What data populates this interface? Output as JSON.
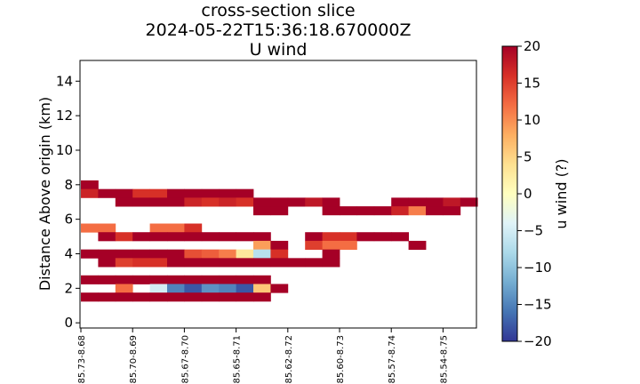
{
  "chart_data": {
    "type": "heatmap",
    "title_lines": [
      "cross-section slice",
      "2024-05-22T15:36:18.670000Z",
      "U wind"
    ],
    "ylabel": "Distance Above origin (km)",
    "xlabel": "",
    "ylim": [
      -0.3,
      15.2
    ],
    "yticks": [
      0,
      2,
      4,
      6,
      8,
      10,
      12,
      14
    ],
    "ytick_labels": [
      "0",
      "2",
      "4",
      "6",
      "8",
      "10",
      "12",
      "14"
    ],
    "xtick_labels": [
      "-85.73-8.68",
      "-85.70-8.69",
      "-85.67-8.70",
      "-85.65-8.71",
      "-85.62-8.72",
      "-85.60-8.73",
      "-85.57-8.74",
      "-85.54-8.75"
    ],
    "xtick_positions": [
      0,
      3,
      6,
      9,
      12,
      15,
      18,
      21
    ],
    "n_columns": 23,
    "level_centers_km": [
      1.5,
      2.0,
      2.5,
      3.5,
      4.0,
      4.5,
      5.0,
      5.5,
      6.5,
      7.0,
      7.5,
      8.0
    ],
    "level_thickness_km": 0.5,
    "rows": [
      {
        "z": 8.0,
        "values": [
          20,
          null,
          null,
          null,
          null,
          null,
          null,
          null,
          null,
          null,
          null,
          null,
          null,
          null,
          null,
          null,
          null,
          null,
          null,
          null,
          null,
          null,
          null
        ]
      },
      {
        "z": 7.5,
        "values": [
          17,
          20,
          20,
          16,
          16,
          20,
          20,
          20,
          20,
          20,
          null,
          null,
          null,
          null,
          null,
          null,
          null,
          null,
          null,
          null,
          null,
          null,
          null
        ]
      },
      {
        "z": 7.0,
        "values": [
          null,
          null,
          20,
          20,
          20,
          20,
          17,
          16,
          17,
          16,
          20,
          20,
          20,
          18,
          20,
          null,
          null,
          null,
          20,
          20,
          20,
          18,
          20
        ]
      },
      {
        "z": 6.5,
        "values": [
          null,
          null,
          null,
          null,
          null,
          null,
          null,
          null,
          null,
          null,
          20,
          20,
          null,
          null,
          20,
          20,
          20,
          20,
          17,
          11,
          20,
          20,
          null
        ]
      },
      {
        "z": 5.5,
        "values": [
          12,
          12,
          null,
          null,
          12,
          12,
          16,
          null,
          null,
          null,
          null,
          null,
          null,
          null,
          null,
          null,
          null,
          null,
          null,
          null,
          null,
          null,
          null
        ]
      },
      {
        "z": 5.0,
        "values": [
          null,
          20,
          16,
          20,
          20,
          20,
          20,
          20,
          20,
          20,
          20,
          null,
          null,
          20,
          16,
          16,
          20,
          20,
          20,
          null,
          null,
          null,
          null
        ]
      },
      {
        "z": 4.5,
        "values": [
          null,
          null,
          null,
          null,
          null,
          null,
          null,
          null,
          null,
          null,
          9,
          20,
          null,
          15,
          12,
          12,
          null,
          null,
          null,
          20,
          null,
          null,
          null
        ]
      },
      {
        "z": 4.0,
        "values": [
          20,
          20,
          20,
          20,
          20,
          20,
          14,
          13,
          11,
          3,
          -7,
          16,
          null,
          null,
          20,
          null,
          null,
          null,
          null,
          null,
          null,
          null,
          null
        ]
      },
      {
        "z": 3.5,
        "values": [
          null,
          20,
          15,
          16,
          16,
          20,
          20,
          20,
          20,
          20,
          20,
          20,
          20,
          20,
          20,
          null,
          null,
          null,
          null,
          null,
          null,
          null,
          null
        ]
      },
      {
        "z": 2.5,
        "values": [
          20,
          20,
          20,
          20,
          20,
          20,
          20,
          20,
          20,
          20,
          20,
          null,
          null,
          null,
          null,
          null,
          null,
          null,
          null,
          null,
          null,
          null,
          null
        ]
      },
      {
        "z": 2.0,
        "values": [
          null,
          null,
          12,
          null,
          -5,
          -15,
          -18,
          -14,
          -15,
          -18,
          6,
          20,
          null,
          null,
          null,
          null,
          null,
          null,
          null,
          null,
          null,
          null,
          null
        ]
      },
      {
        "z": 1.5,
        "values": [
          20,
          20,
          20,
          20,
          20,
          20,
          20,
          20,
          20,
          20,
          20,
          null,
          null,
          null,
          null,
          null,
          null,
          null,
          null,
          null,
          null,
          null,
          null
        ]
      }
    ],
    "colorbar": {
      "label": "u wind (?)",
      "min": -20,
      "max": 20,
      "ticks": [
        20,
        15,
        10,
        5,
        0,
        -5,
        -10,
        -15,
        -20
      ],
      "tick_labels": [
        "20",
        "15",
        "10",
        "5",
        "0",
        "−5",
        "−10",
        "−15",
        "−20"
      ],
      "colormap": "RdYlBu_r"
    }
  }
}
